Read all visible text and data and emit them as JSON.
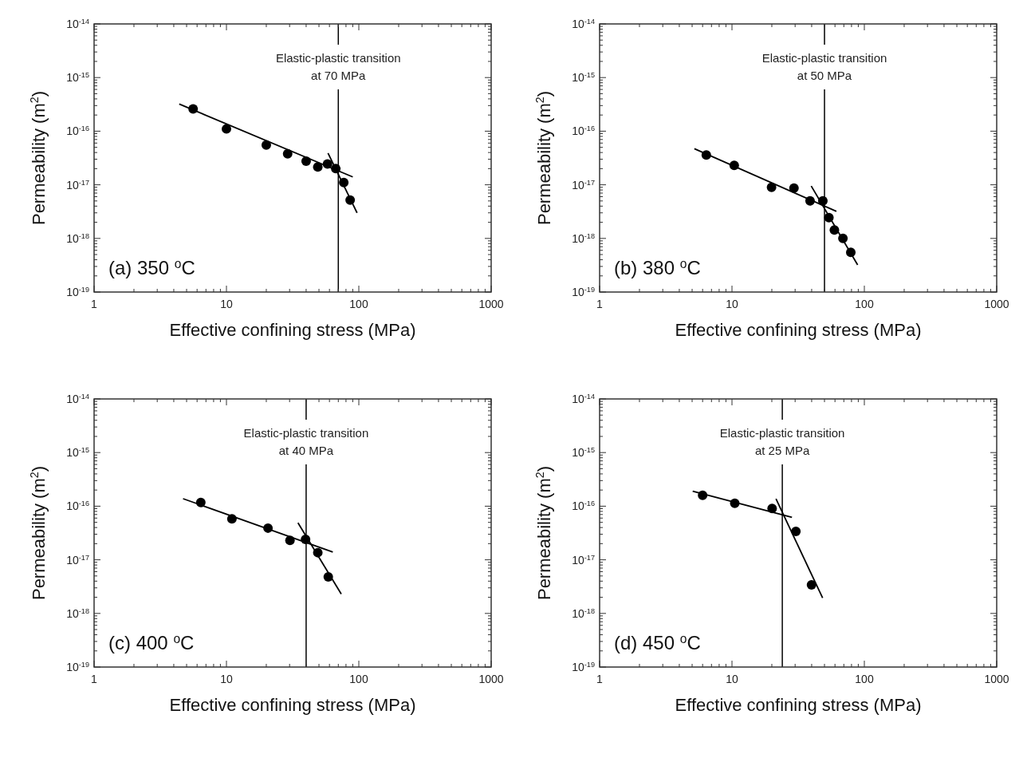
{
  "chart_data": [
    {
      "type": "scatter",
      "xlabel": "Effective confining stress (MPa)",
      "ylabel": "Permeability (m$^{2}$)",
      "log": "xy",
      "grid": false,
      "marker": "circle",
      "xlim": [
        1,
        1000
      ],
      "xticks": [
        1,
        10,
        100,
        1000
      ],
      "ylim": [
        1e-19,
        1e-14
      ],
      "yticks": [
        {
          "value": 1e-19,
          "label": "10$^{-19}$"
        },
        {
          "value": 1e-18,
          "label": "10$^{-18}$"
        },
        {
          "value": 1e-17,
          "label": "10$^{-17}$"
        },
        {
          "value": 1e-16,
          "label": "10$^{-16}$"
        },
        {
          "value": 1e-15,
          "label": "10$^{-15}$"
        },
        {
          "value": 1e-14,
          "label": "10$^{-14}$"
        }
      ],
      "series": [
        {
          "color": "#000000",
          "x": [
            5.6,
            10,
            20,
            29,
            40,
            49,
            58,
            67,
            77,
            86
          ],
          "values": [
            2.6e-16,
            1.1e-16,
            5.5e-17,
            3.8e-17,
            2.75e-17,
            2.15e-17,
            2.45e-17,
            2e-17,
            1.1e-17,
            5.2e-18
          ]
        },
        {
          "type": "line",
          "color": "#000000",
          "marker": "none",
          "x": [
            4.4,
            90
          ],
          "values": [
            3.2e-16,
            1.4e-17
          ]
        },
        {
          "type": "line",
          "color": "#000000",
          "marker": "none",
          "x": [
            58.5,
            97
          ],
          "values": [
            3.9e-17,
            3e-18
          ]
        }
      ],
      "ref_lines": [
        {
          "axis": "x",
          "value": 70,
          "label": "Elastic-plastic transition\nat 70 MPa",
          "color": "#000000"
        }
      ],
      "annotations": [
        "(a) 350 $^{o}$C"
      ]
    },
    {
      "type": "scatter",
      "xlabel": "Effective confining stress (MPa)",
      "ylabel": "Permeability (m$^{2}$)",
      "log": "xy",
      "grid": false,
      "marker": "circle",
      "xlim": [
        1,
        1000
      ],
      "xticks": [
        1,
        10,
        100,
        1000
      ],
      "ylim": [
        1e-19,
        1e-14
      ],
      "yticks": [
        {
          "value": 1e-19,
          "label": "10$^{-19}$"
        },
        {
          "value": 1e-18,
          "label": "10$^{-18}$"
        },
        {
          "value": 1e-17,
          "label": "10$^{-17}$"
        },
        {
          "value": 1e-16,
          "label": "10$^{-16}$"
        },
        {
          "value": 1e-15,
          "label": "10$^{-15}$"
        },
        {
          "value": 1e-14,
          "label": "10$^{-14}$"
        }
      ],
      "series": [
        {
          "color": "#000000",
          "x": [
            6.4,
            10.4,
            19.9,
            29.4,
            38.9,
            48.6,
            54,
            59.4,
            68.9,
            79
          ],
          "values": [
            3.6e-17,
            2.3e-17,
            9e-18,
            8.7e-18,
            5e-18,
            5e-18,
            2.45e-18,
            1.44e-18,
            1e-18,
            5.5e-19
          ]
        },
        {
          "type": "line",
          "color": "#000000",
          "marker": "none",
          "x": [
            5.2,
            61.5
          ],
          "values": [
            4.7e-17,
            3.2e-18
          ]
        },
        {
          "type": "line",
          "color": "#000000",
          "marker": "none",
          "x": [
            39.7,
            89
          ],
          "values": [
            9.5e-18,
            3.2e-19
          ]
        }
      ],
      "ref_lines": [
        {
          "axis": "x",
          "value": 50,
          "label": "Elastic-plastic transition\nat 50 MPa",
          "color": "#000000"
        }
      ],
      "annotations": [
        "(b) 380 $^{o}$C"
      ]
    },
    {
      "type": "scatter",
      "xlabel": "Effective confining stress (MPa)",
      "ylabel": "Permeability (m$^{2}$)",
      "log": "xy",
      "grid": false,
      "marker": "circle",
      "xlim": [
        1,
        1000
      ],
      "xticks": [
        1,
        10,
        100,
        1000
      ],
      "ylim": [
        1e-19,
        1e-14
      ],
      "yticks": [
        {
          "value": 1e-19,
          "label": "10$^{-19}$"
        },
        {
          "value": 1e-18,
          "label": "10$^{-18}$"
        },
        {
          "value": 1e-17,
          "label": "10$^{-17}$"
        },
        {
          "value": 1e-16,
          "label": "10$^{-16}$"
        },
        {
          "value": 1e-15,
          "label": "10$^{-15}$"
        },
        {
          "value": 1e-14,
          "label": "10$^{-14}$"
        }
      ],
      "series": [
        {
          "color": "#000000",
          "x": [
            6.4,
            11,
            20.6,
            30.2,
            39.6,
            49,
            58.8
          ],
          "values": [
            1.17e-16,
            5.8e-17,
            3.9e-17,
            2.3e-17,
            2.4e-17,
            1.36e-17,
            4.8e-18
          ]
        },
        {
          "type": "line",
          "color": "#000000",
          "marker": "none",
          "x": [
            4.7,
            63.6
          ],
          "values": [
            1.38e-16,
            1.4e-17
          ]
        },
        {
          "type": "line",
          "color": "#000000",
          "marker": "none",
          "x": [
            34.7,
            73.7
          ],
          "values": [
            4.9e-17,
            2.3e-18
          ]
        }
      ],
      "ref_lines": [
        {
          "axis": "x",
          "value": 40,
          "label": "Elastic-plastic transition\nat 40 MPa",
          "color": "#000000"
        }
      ],
      "annotations": [
        "(c) 400 $^{o}$C"
      ]
    },
    {
      "type": "scatter",
      "xlabel": "Effective confining stress (MPa)",
      "ylabel": "Permeability (m$^{2}$)",
      "log": "xy",
      "grid": false,
      "marker": "circle",
      "xlim": [
        1,
        1000
      ],
      "xticks": [
        1,
        10,
        100,
        1000
      ],
      "ylim": [
        1e-19,
        1e-14
      ],
      "yticks": [
        {
          "value": 1e-19,
          "label": "10$^{-19}$"
        },
        {
          "value": 1e-18,
          "label": "10$^{-18}$"
        },
        {
          "value": 1e-17,
          "label": "10$^{-17}$"
        },
        {
          "value": 1e-16,
          "label": "10$^{-16}$"
        },
        {
          "value": 1e-15,
          "label": "10$^{-15}$"
        },
        {
          "value": 1e-14,
          "label": "10$^{-14}$"
        }
      ],
      "series": [
        {
          "color": "#000000",
          "x": [
            6,
            10.5,
            20.1,
            30.4,
            39.9
          ],
          "values": [
            1.6e-16,
            1.13e-16,
            9.1e-17,
            3.4e-17,
            3.4e-18
          ]
        },
        {
          "type": "line",
          "color": "#000000",
          "marker": "none",
          "x": [
            5.05,
            28.4
          ],
          "values": [
            1.9e-16,
            6.2e-17
          ]
        },
        {
          "type": "line",
          "color": "#000000",
          "marker": "none",
          "x": [
            21.5,
            48.4
          ],
          "values": [
            1.37e-16,
            1.95e-18
          ]
        }
      ],
      "ref_lines": [
        {
          "axis": "x",
          "value": 24,
          "label": "Elastic-plastic transition\nat 25 MPa",
          "color": "#000000"
        }
      ],
      "annotations": [
        "(d) 450 $^{o}$C"
      ]
    }
  ]
}
